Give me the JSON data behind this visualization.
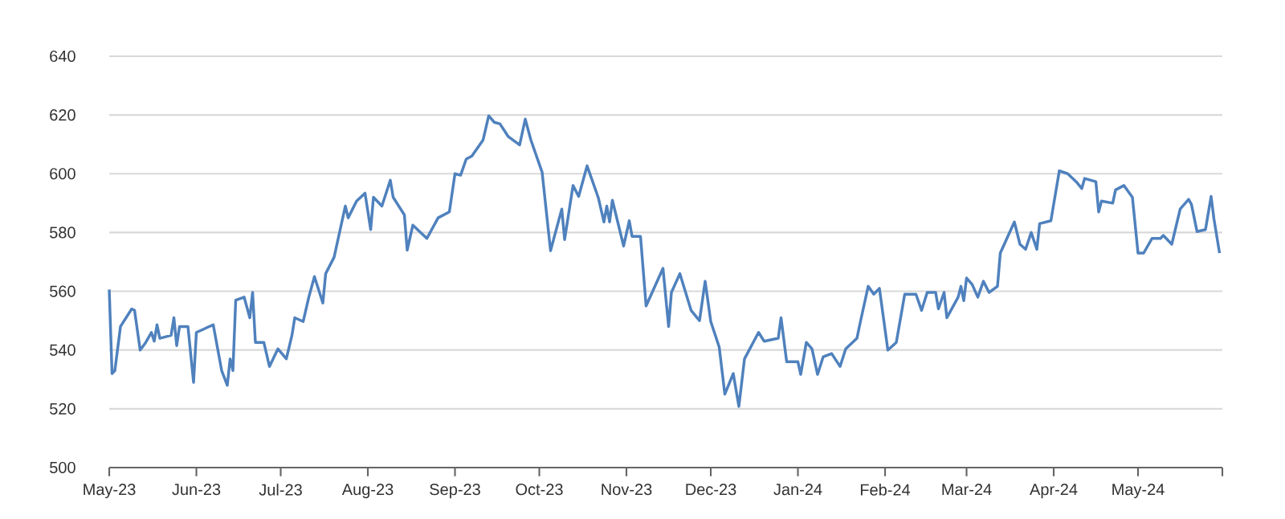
{
  "chart_data": {
    "type": "line",
    "color": "#4f81bd",
    "grid": "y",
    "xlim": [
      "2023-05-01",
      "2024-05-31"
    ],
    "ylim": [
      500,
      640
    ],
    "yticks": [
      500,
      520,
      540,
      560,
      580,
      600,
      620,
      640
    ],
    "xticks": [
      {
        "value": "2023-05-01",
        "label": "May-23"
      },
      {
        "value": "2023-06-01",
        "label": "Jun-23"
      },
      {
        "value": "2023-07-01",
        "label": "Jul-23"
      },
      {
        "value": "2023-08-01",
        "label": "Aug-23"
      },
      {
        "value": "2023-09-01",
        "label": "Sep-23"
      },
      {
        "value": "2023-10-01",
        "label": "Oct-23"
      },
      {
        "value": "2023-11-01",
        "label": "Nov-23"
      },
      {
        "value": "2023-12-01",
        "label": "Dec-23"
      },
      {
        "value": "2024-01-01",
        "label": "Jan-24"
      },
      {
        "value": "2024-02-01",
        "label": "Feb-24"
      },
      {
        "value": "2024-03-01",
        "label": "Mar-24"
      },
      {
        "value": "2024-04-01",
        "label": "Apr-24"
      },
      {
        "value": "2024-05-01",
        "label": "May-24"
      },
      {
        "value": "2024-05-31",
        "label": null
      }
    ],
    "x": [
      "2023-05-01",
      "2023-05-02",
      "2023-05-03",
      "2023-05-05",
      "2023-05-09",
      "2023-05-10",
      "2023-05-12",
      "2023-05-14",
      "2023-05-16",
      "2023-05-17",
      "2023-05-18",
      "2023-05-19",
      "2023-05-23",
      "2023-05-24",
      "2023-05-25",
      "2023-05-26",
      "2023-05-29",
      "2023-05-31",
      "2023-06-01",
      "2023-06-07",
      "2023-06-10",
      "2023-06-12",
      "2023-06-13",
      "2023-06-14",
      "2023-06-15",
      "2023-06-18",
      "2023-06-20",
      "2023-06-21",
      "2023-06-22",
      "2023-06-25",
      "2023-06-27",
      "2023-06-30",
      "2023-07-03",
      "2023-07-05",
      "2023-07-06",
      "2023-07-09",
      "2023-07-11",
      "2023-07-13",
      "2023-07-16",
      "2023-07-17",
      "2023-07-20",
      "2023-07-24",
      "2023-07-25",
      "2023-07-28",
      "2023-07-31",
      "2023-08-02",
      "2023-08-03",
      "2023-08-06",
      "2023-08-09",
      "2023-08-10",
      "2023-08-14",
      "2023-08-15",
      "2023-08-17",
      "2023-08-22",
      "2023-08-26",
      "2023-08-30",
      "2023-09-01",
      "2023-09-03",
      "2023-09-05",
      "2023-09-07",
      "2023-09-11",
      "2023-09-13",
      "2023-09-15",
      "2023-09-17",
      "2023-09-20",
      "2023-09-24",
      "2023-09-26",
      "2023-09-28",
      "2023-10-02",
      "2023-10-05",
      "2023-10-09",
      "2023-10-10",
      "2023-10-13",
      "2023-10-15",
      "2023-10-18",
      "2023-10-22",
      "2023-10-24",
      "2023-10-25",
      "2023-10-26",
      "2023-10-27",
      "2023-10-31",
      "2023-11-02",
      "2023-11-03",
      "2023-11-06",
      "2023-11-08",
      "2023-11-14",
      "2023-11-16",
      "2023-11-17",
      "2023-11-20",
      "2023-11-24",
      "2023-11-27",
      "2023-11-29",
      "2023-12-01",
      "2023-12-04",
      "2023-12-06",
      "2023-12-09",
      "2023-12-11",
      "2023-12-13",
      "2023-12-18",
      "2023-12-20",
      "2023-12-25",
      "2023-12-26",
      "2023-12-28",
      "2024-01-01",
      "2024-01-02",
      "2024-01-04",
      "2024-01-06",
      "2024-01-08",
      "2024-01-10",
      "2024-01-13",
      "2024-01-16",
      "2024-01-18",
      "2024-01-22",
      "2024-01-23",
      "2024-01-26",
      "2024-01-28",
      "2024-01-30",
      "2024-02-02",
      "2024-02-05",
      "2024-02-08",
      "2024-02-12",
      "2024-02-14",
      "2024-02-16",
      "2024-02-19",
      "2024-02-20",
      "2024-02-22",
      "2024-02-23",
      "2024-02-27",
      "2024-02-28",
      "2024-02-29",
      "2024-03-01",
      "2024-03-03",
      "2024-03-05",
      "2024-03-07",
      "2024-03-09",
      "2024-03-12",
      "2024-03-13",
      "2024-03-18",
      "2024-03-20",
      "2024-03-22",
      "2024-03-24",
      "2024-03-26",
      "2024-03-27",
      "2024-03-31",
      "2024-04-03",
      "2024-04-06",
      "2024-04-09",
      "2024-04-11",
      "2024-04-12",
      "2024-04-16",
      "2024-04-17",
      "2024-04-18",
      "2024-04-22",
      "2024-04-23",
      "2024-04-26",
      "2024-04-29",
      "2024-05-01",
      "2024-05-03",
      "2024-05-06",
      "2024-05-09",
      "2024-05-10",
      "2024-05-13",
      "2024-05-16",
      "2024-05-19",
      "2024-05-20",
      "2024-05-22",
      "2024-05-25",
      "2024-05-27",
      "2024-05-28",
      "2024-05-30"
    ],
    "values": [
      560.6,
      532,
      533,
      548,
      554,
      553.5,
      540,
      542.6,
      546,
      543,
      548.6,
      544,
      545,
      551,
      541.5,
      548,
      548,
      529,
      546,
      548.6,
      533,
      528,
      537,
      533,
      557,
      558,
      551,
      559.6,
      542.6,
      542.6,
      534.4,
      540.4,
      537,
      545,
      551,
      549.7,
      558,
      565,
      556,
      566,
      571.6,
      589,
      585,
      590.7,
      593.4,
      581,
      592,
      589,
      597.8,
      592,
      586,
      574,
      582.5,
      578,
      585,
      587,
      600,
      599.5,
      605,
      606,
      611.5,
      619.7,
      617.5,
      617,
      612.6,
      609.8,
      618.6,
      611.5,
      600.5,
      573.8,
      588,
      577.6,
      596,
      592.3,
      602.7,
      591.8,
      583.6,
      589,
      583.6,
      591,
      575.4,
      584,
      578.7,
      578.7,
      555,
      567.8,
      548,
      559.6,
      566,
      553.5,
      550,
      563.4,
      549.7,
      541,
      525,
      532,
      520.8,
      537,
      546,
      543,
      544,
      551,
      536,
      536,
      531.7,
      542.6,
      540.4,
      531.7,
      537.7,
      538.8,
      534.4,
      540.4,
      544,
      548.6,
      561.7,
      559,
      561,
      540,
      542.6,
      559,
      559,
      553.5,
      559.6,
      559.6,
      554,
      559.6,
      551,
      558,
      561.7,
      556.8,
      564.5,
      562.3,
      558,
      563.4,
      559.6,
      561.7,
      573,
      583.6,
      576,
      574.3,
      580,
      574.3,
      583,
      584,
      601,
      600,
      597.3,
      595,
      598.4,
      597.3,
      587,
      590.7,
      590,
      594.5,
      596,
      592,
      573,
      573,
      578,
      578,
      579,
      576,
      588,
      591.3,
      589.6,
      580.3,
      581,
      592.3,
      584.7,
      573
    ]
  }
}
